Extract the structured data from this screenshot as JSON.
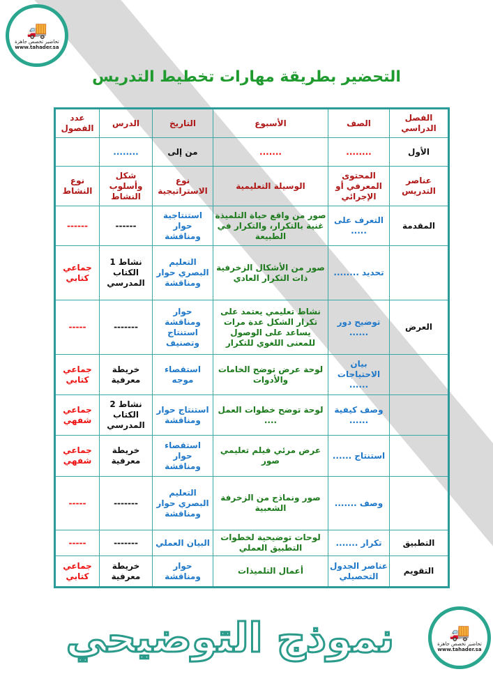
{
  "title": "التحضير بطريقة مهارات تخطيط التدريس",
  "logo": {
    "name": "تحاضير تخصص جاهزة",
    "url": "www.tahader.sa",
    "icon": "truck-graduation-cap-icon"
  },
  "watermark": "نموذج التوضيحي",
  "colors": {
    "header": "#b01818",
    "content": "#1f78c8",
    "media": "#1d7a1d",
    "type": "#ee1111",
    "border": "#2a9a9a"
  },
  "header_row": [
    "الفصل الدراسي",
    "الصف",
    "الأسبوع",
    "التاريخ",
    "الدرس",
    "عدد الفصول"
  ],
  "info_row": [
    "الأول",
    "........",
    ".......",
    " من إلى",
    "........",
    ""
  ],
  "elements_row": [
    "عناصر التدريس",
    "المحتوى المعرفي أو الإجرائي",
    "الوسيلة التعليمية",
    "نوع الاستراتيجية",
    "شكل وأسلوب النشاط",
    "نوع النشاط"
  ],
  "rows": [
    [
      "المقدمة",
      "التعرف على .....",
      "صور من واقع حياة التلميذة غنية بالتكرار، والتكرار في الطبيعة",
      "استنتاجية حوار ومناقشة",
      "------",
      "------"
    ],
    [
      "",
      "تحديد ........",
      "صور من الأشكال الزخرفية ذات التكرار العادي",
      "التعليم البصري حوار ومناقشة",
      "نشاط 1 الكتاب المدرسي",
      "جماعي كتابي"
    ],
    [
      "العرض",
      "توضيح دور ......",
      "نشاط تعليمي يعتمد على تكرار الشكل عدة مرات يساعد على الوصول للمعنى اللغوي للتكرار",
      "حوار ومناقشة استنتاج وتصنيف",
      "-------",
      "-----"
    ],
    [
      "",
      "بيان الاحتياجات ......",
      "لوحة عرض توضح الخامات والأدوات",
      "استقصاء موجه",
      "خريطة معرفية",
      "جماعي كتابي"
    ],
    [
      "",
      "وصف كيفية ......",
      "لوحة توضح خطوات العمل ....",
      "استنتاج حوار ومناقشة",
      "نشاط 2 الكتاب المدرسي",
      "جماعي شفهي"
    ],
    [
      "",
      "استنتاج ......",
      "عرض مرئي فيلم تعليمي صور",
      "استقصاء حوار ومناقشة",
      "خريطة معرفية",
      "جماعي شفهي"
    ],
    [
      "",
      "وصف .......",
      "صور ونماذج من الزخرفة الشعبية",
      "التعليم البصري حوار ومناقشة",
      "-------",
      "-----"
    ],
    [
      "التطبيق",
      "تكرار .......",
      "لوحات توضيحية لخطوات التطبيق العملي",
      "البيان العملي",
      "-------",
      "-----"
    ],
    [
      "التقويم",
      "عناصر الجدول التحصيلي",
      "أعمال التلميذات",
      "حوار ومناقشة",
      "خريطة معرفية",
      "جماعي كتابي"
    ]
  ]
}
